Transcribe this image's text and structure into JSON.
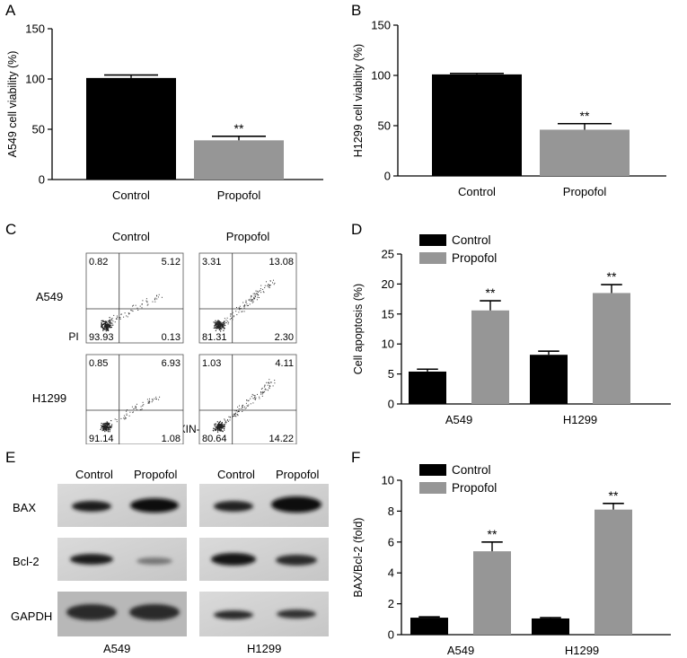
{
  "chart_data": [
    {
      "panel": "A",
      "type": "bar",
      "categories": [
        "Control",
        "Propofol"
      ],
      "values": [
        101,
        39
      ],
      "errors": [
        3,
        4
      ],
      "significance": [
        "",
        "**"
      ],
      "colors": [
        "#000000",
        "#969696"
      ],
      "ylabel": "A549 cell viability (%)",
      "ylim": [
        0,
        150
      ],
      "yticks": [
        0,
        50,
        100,
        150
      ]
    },
    {
      "panel": "B",
      "type": "bar",
      "categories": [
        "Control",
        "Propofol"
      ],
      "values": [
        101,
        46
      ],
      "errors": [
        1,
        6
      ],
      "significance": [
        "",
        "**"
      ],
      "colors": [
        "#000000",
        "#969696"
      ],
      "ylabel": "H1299 cell viability (%)",
      "ylim": [
        0,
        150
      ],
      "yticks": [
        0,
        50,
        100,
        150
      ]
    },
    {
      "panel": "C",
      "type": "scatter",
      "columns": [
        "Control",
        "Propofol"
      ],
      "rows": [
        "A549",
        "H1299"
      ],
      "ylabel": "PI",
      "xlabel": "ANNEXIN-V",
      "quadrants": [
        [
          [
            "0.82",
            "5.12",
            "93.93",
            "0.13"
          ],
          [
            "3.31",
            "13.08",
            "81.31",
            "2.30"
          ]
        ],
        [
          [
            "0.85",
            "6.93",
            "91.14",
            "1.08"
          ],
          [
            "1.03",
            "4.11",
            "80.64",
            "14.22"
          ]
        ]
      ]
    },
    {
      "panel": "D",
      "type": "bar",
      "categories": [
        "A549",
        "H1299"
      ],
      "series": [
        {
          "name": "Control",
          "color": "#000000",
          "values": [
            5.4,
            8.2
          ],
          "errors": [
            0.4,
            0.6
          ]
        },
        {
          "name": "Propofol",
          "color": "#969696",
          "values": [
            15.6,
            18.5
          ],
          "errors": [
            1.6,
            1.4
          ]
        }
      ],
      "significance": "**",
      "ylabel": "Cell apoptosis (%)",
      "ylim": [
        0,
        25
      ],
      "yticks": [
        0,
        5,
        10,
        15,
        20,
        25
      ],
      "legend": "top-left"
    },
    {
      "panel": "E",
      "type": "table",
      "kind": "western-blot",
      "lanes": [
        "Control",
        "Propofol"
      ],
      "proteins": [
        "BAX",
        "Bcl-2",
        "GAPDH"
      ],
      "cell_lines": [
        "A549",
        "H1299"
      ]
    },
    {
      "panel": "F",
      "type": "bar",
      "categories": [
        "A549",
        "H1299"
      ],
      "series": [
        {
          "name": "Control",
          "color": "#000000",
          "values": [
            1.1,
            1.05
          ],
          "errors": [
            0.05,
            0.05
          ]
        },
        {
          "name": "Propofol",
          "color": "#969696",
          "values": [
            5.4,
            8.1
          ],
          "errors": [
            0.6,
            0.4
          ]
        }
      ],
      "significance": "**",
      "ylabel": "BAX/Bcl-2 (fold)",
      "ylim": [
        0,
        10
      ],
      "yticks": [
        0,
        2,
        4,
        6,
        8,
        10
      ],
      "legend": "top-left"
    }
  ],
  "panel_letters": [
    "A",
    "B",
    "C",
    "D",
    "E",
    "F"
  ],
  "blot": {
    "lanes": [
      "Control",
      "Propofol"
    ],
    "proteins": [
      "BAX",
      "Bcl-2",
      "GAPDH"
    ],
    "cell_lines": [
      "A549",
      "H1299"
    ]
  }
}
